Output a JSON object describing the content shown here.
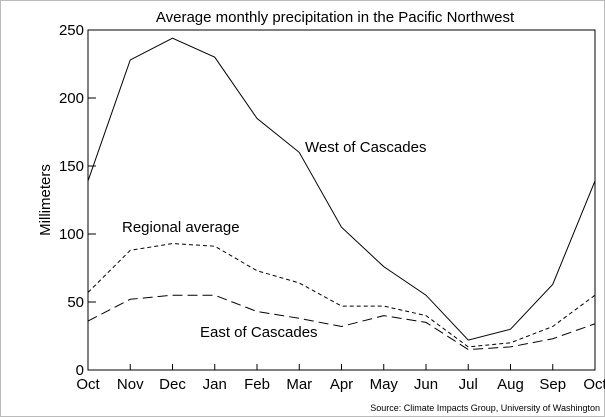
{
  "chart_data": {
    "type": "line",
    "title": "Average monthly precipitation in the Pacific Northwest",
    "y_label": "Millimeters",
    "source": "Source: Climate Impacts Group, University of Washington",
    "categories": [
      "Oct",
      "Nov",
      "Dec",
      "Jan",
      "Feb",
      "Mar",
      "Apr",
      "May",
      "Jun",
      "Jul",
      "Aug",
      "Sep",
      "Oct"
    ],
    "series": [
      {
        "name": "West of Cascades",
        "color": "#000000",
        "line_style": "solid",
        "values": [
          139,
          228,
          244,
          230,
          185,
          160,
          105,
          76,
          55,
          22,
          30,
          63,
          139
        ]
      },
      {
        "name": "Regional average",
        "color": "#000000",
        "line_style": "dashed",
        "values": [
          57,
          88,
          93,
          91,
          73,
          64,
          47,
          47,
          40,
          17,
          20,
          32,
          55
        ]
      },
      {
        "name": "East of Cascades",
        "color": "#000000",
        "line_style": "long-dashed",
        "values": [
          36,
          52,
          55,
          55,
          43,
          38,
          32,
          40,
          35,
          15,
          17,
          23,
          34
        ]
      }
    ],
    "ylim": [
      0,
      250
    ],
    "yticks": [
      0,
      50,
      100,
      150,
      200,
      250
    ]
  }
}
